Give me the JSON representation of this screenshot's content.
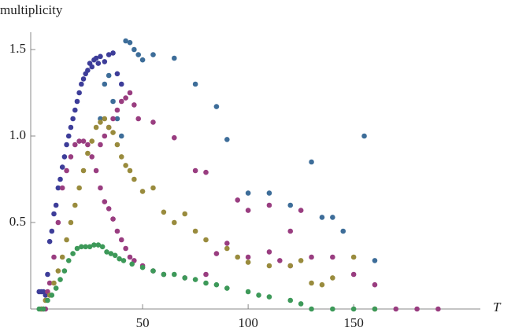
{
  "chart_data": {
    "type": "scatter",
    "x_label": "T",
    "y_label": "multiplicity",
    "xlim": [
      -3,
      210
    ],
    "ylim": [
      0,
      1.6
    ],
    "xticks": [
      50,
      100,
      150
    ],
    "yticks": [
      0.5,
      {
        "value": 1.0,
        "label": "1.0"
      },
      1.5
    ],
    "series": [
      {
        "color": "#3d3d99",
        "x": [
          1,
          2,
          3,
          4,
          5,
          6,
          7,
          8,
          9,
          10,
          11,
          12,
          13,
          14,
          15,
          16,
          17,
          18,
          19,
          20,
          21,
          22,
          23,
          24,
          25,
          26,
          27,
          28,
          29,
          30,
          32,
          34,
          36,
          38,
          40
        ],
        "values": [
          0.1,
          0.1,
          0.1,
          0.08,
          0.2,
          0.39,
          0.45,
          0.55,
          0.6,
          0.7,
          0.75,
          0.82,
          0.88,
          0.95,
          1.0,
          1.05,
          1.1,
          1.15,
          1.2,
          1.25,
          1.3,
          1.33,
          1.36,
          1.38,
          1.42,
          1.4,
          1.44,
          1.45,
          1.42,
          1.46,
          1.43,
          1.47,
          1.48,
          1.36,
          1.3
        ]
      },
      {
        "color": "#3d6d99",
        "x": [
          30,
          32,
          34,
          36,
          38,
          40,
          42,
          44,
          46,
          48,
          50,
          55,
          65,
          75,
          85,
          90,
          100,
          110,
          120,
          130,
          135,
          140,
          145,
          155,
          160
        ],
        "values": [
          1.1,
          1.3,
          1.35,
          1.2,
          1.1,
          1.0,
          1.55,
          1.54,
          1.5,
          1.47,
          1.44,
          1.47,
          1.45,
          1.3,
          1.17,
          0.98,
          0.67,
          0.67,
          0.6,
          0.85,
          0.53,
          0.53,
          0.45,
          1.0,
          0.28
        ]
      },
      {
        "color": "#993d80",
        "x": [
          2,
          3,
          4,
          5,
          6,
          8,
          10,
          12,
          14,
          16,
          18,
          20,
          22,
          24,
          26,
          28,
          30,
          32,
          34,
          36,
          38,
          40,
          42,
          44,
          46,
          30,
          32,
          34,
          36,
          38,
          40,
          42,
          44,
          46,
          48,
          55,
          65,
          75,
          80,
          95,
          100,
          110,
          120,
          125,
          130,
          140,
          150,
          160,
          170,
          180,
          190,
          50,
          55,
          60,
          70,
          80,
          85,
          90,
          100,
          110,
          115,
          120
        ],
        "values": [
          0,
          0,
          0,
          0.1,
          0.15,
          0.3,
          0.5,
          0.7,
          0.8,
          0.88,
          0.95,
          0.97,
          0.97,
          0.95,
          0.88,
          0.8,
          0.7,
          0.62,
          0.58,
          0.52,
          0.45,
          0.4,
          0.35,
          0.3,
          0.28,
          0.95,
          1.0,
          1.05,
          1.1,
          1.15,
          1.2,
          1.22,
          1.25,
          1.18,
          1.1,
          1.08,
          0.99,
          0.8,
          0.79,
          0.63,
          0.57,
          0.6,
          0.45,
          0.57,
          0.3,
          0.3,
          0.2,
          0.14,
          0,
          0,
          0,
          0.25,
          0.22,
          0.2,
          0.18,
          0.2,
          0.32,
          0.38,
          0.3,
          0.33,
          0.28,
          0.25
        ]
      },
      {
        "color": "#998b3d",
        "x": [
          2,
          4,
          6,
          8,
          10,
          12,
          14,
          16,
          18,
          20,
          22,
          24,
          26,
          28,
          30,
          32,
          34,
          36,
          38,
          40,
          42,
          44,
          46,
          50,
          55,
          60,
          65,
          70,
          75,
          80,
          90,
          95,
          100,
          110,
          120,
          125,
          130,
          135,
          140,
          150,
          160
        ],
        "values": [
          0,
          0.05,
          0.08,
          0.15,
          0.22,
          0.3,
          0.4,
          0.5,
          0.6,
          0.7,
          0.8,
          0.9,
          0.97,
          1.05,
          1.08,
          1.1,
          1.05,
          1.02,
          0.95,
          0.88,
          0.83,
          0.8,
          0.75,
          0.68,
          0.7,
          0.56,
          0.5,
          0.55,
          0.45,
          0.4,
          0.35,
          0.3,
          0.27,
          0.25,
          0.25,
          0.28,
          0.15,
          0.14,
          0.18,
          0.3,
          0
        ]
      },
      {
        "color": "#3d9959",
        "x": [
          1,
          3,
          5,
          7,
          9,
          11,
          13,
          15,
          17,
          19,
          21,
          23,
          25,
          27,
          29,
          31,
          33,
          35,
          37,
          39,
          41,
          45,
          50,
          55,
          60,
          65,
          70,
          75,
          80,
          85,
          90,
          100,
          105,
          110,
          120,
          125,
          130,
          140,
          150,
          160
        ],
        "values": [
          0,
          0,
          0.05,
          0.08,
          0.12,
          0.17,
          0.22,
          0.28,
          0.32,
          0.35,
          0.36,
          0.36,
          0.36,
          0.37,
          0.37,
          0.36,
          0.33,
          0.32,
          0.31,
          0.29,
          0.28,
          0.26,
          0.24,
          0.22,
          0.2,
          0.2,
          0.18,
          0.17,
          0.15,
          0.14,
          0.12,
          0.1,
          0.08,
          0.07,
          0.05,
          0.03,
          0,
          0,
          0,
          0
        ]
      }
    ]
  }
}
